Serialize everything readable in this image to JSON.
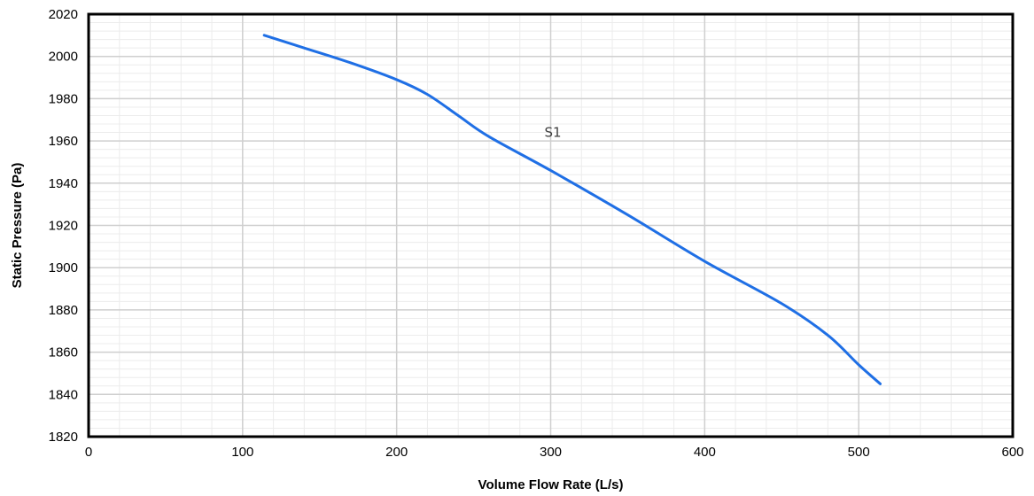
{
  "chart_data": {
    "type": "line",
    "xlabel": "Volume Flow Rate (L/s)",
    "ylabel": "Static Pressure (Pa)",
    "xlim": [
      0,
      600
    ],
    "ylim": [
      1820,
      2020
    ],
    "x_ticks": [
      "0",
      "100",
      "200",
      "300",
      "400",
      "500",
      "600"
    ],
    "y_ticks": [
      "1820",
      "1840",
      "1860",
      "1880",
      "1900",
      "1920",
      "1940",
      "1960",
      "1980",
      "2000",
      "2020"
    ],
    "grid": true,
    "minor_grid": true,
    "series": [
      {
        "name": "S1",
        "color": "#1f6fe5",
        "points": [
          [
            114,
            2010
          ],
          [
            140,
            2004
          ],
          [
            170,
            1997
          ],
          [
            200,
            1989
          ],
          [
            220,
            1982
          ],
          [
            240,
            1972
          ],
          [
            260,
            1962
          ],
          [
            300,
            1946
          ],
          [
            350,
            1925
          ],
          [
            400,
            1903
          ],
          [
            450,
            1883
          ],
          [
            480,
            1868
          ],
          [
            500,
            1854
          ],
          [
            514,
            1845
          ]
        ]
      }
    ],
    "annotations": [
      {
        "text": "S1",
        "x": 296,
        "y": 1962
      }
    ]
  }
}
